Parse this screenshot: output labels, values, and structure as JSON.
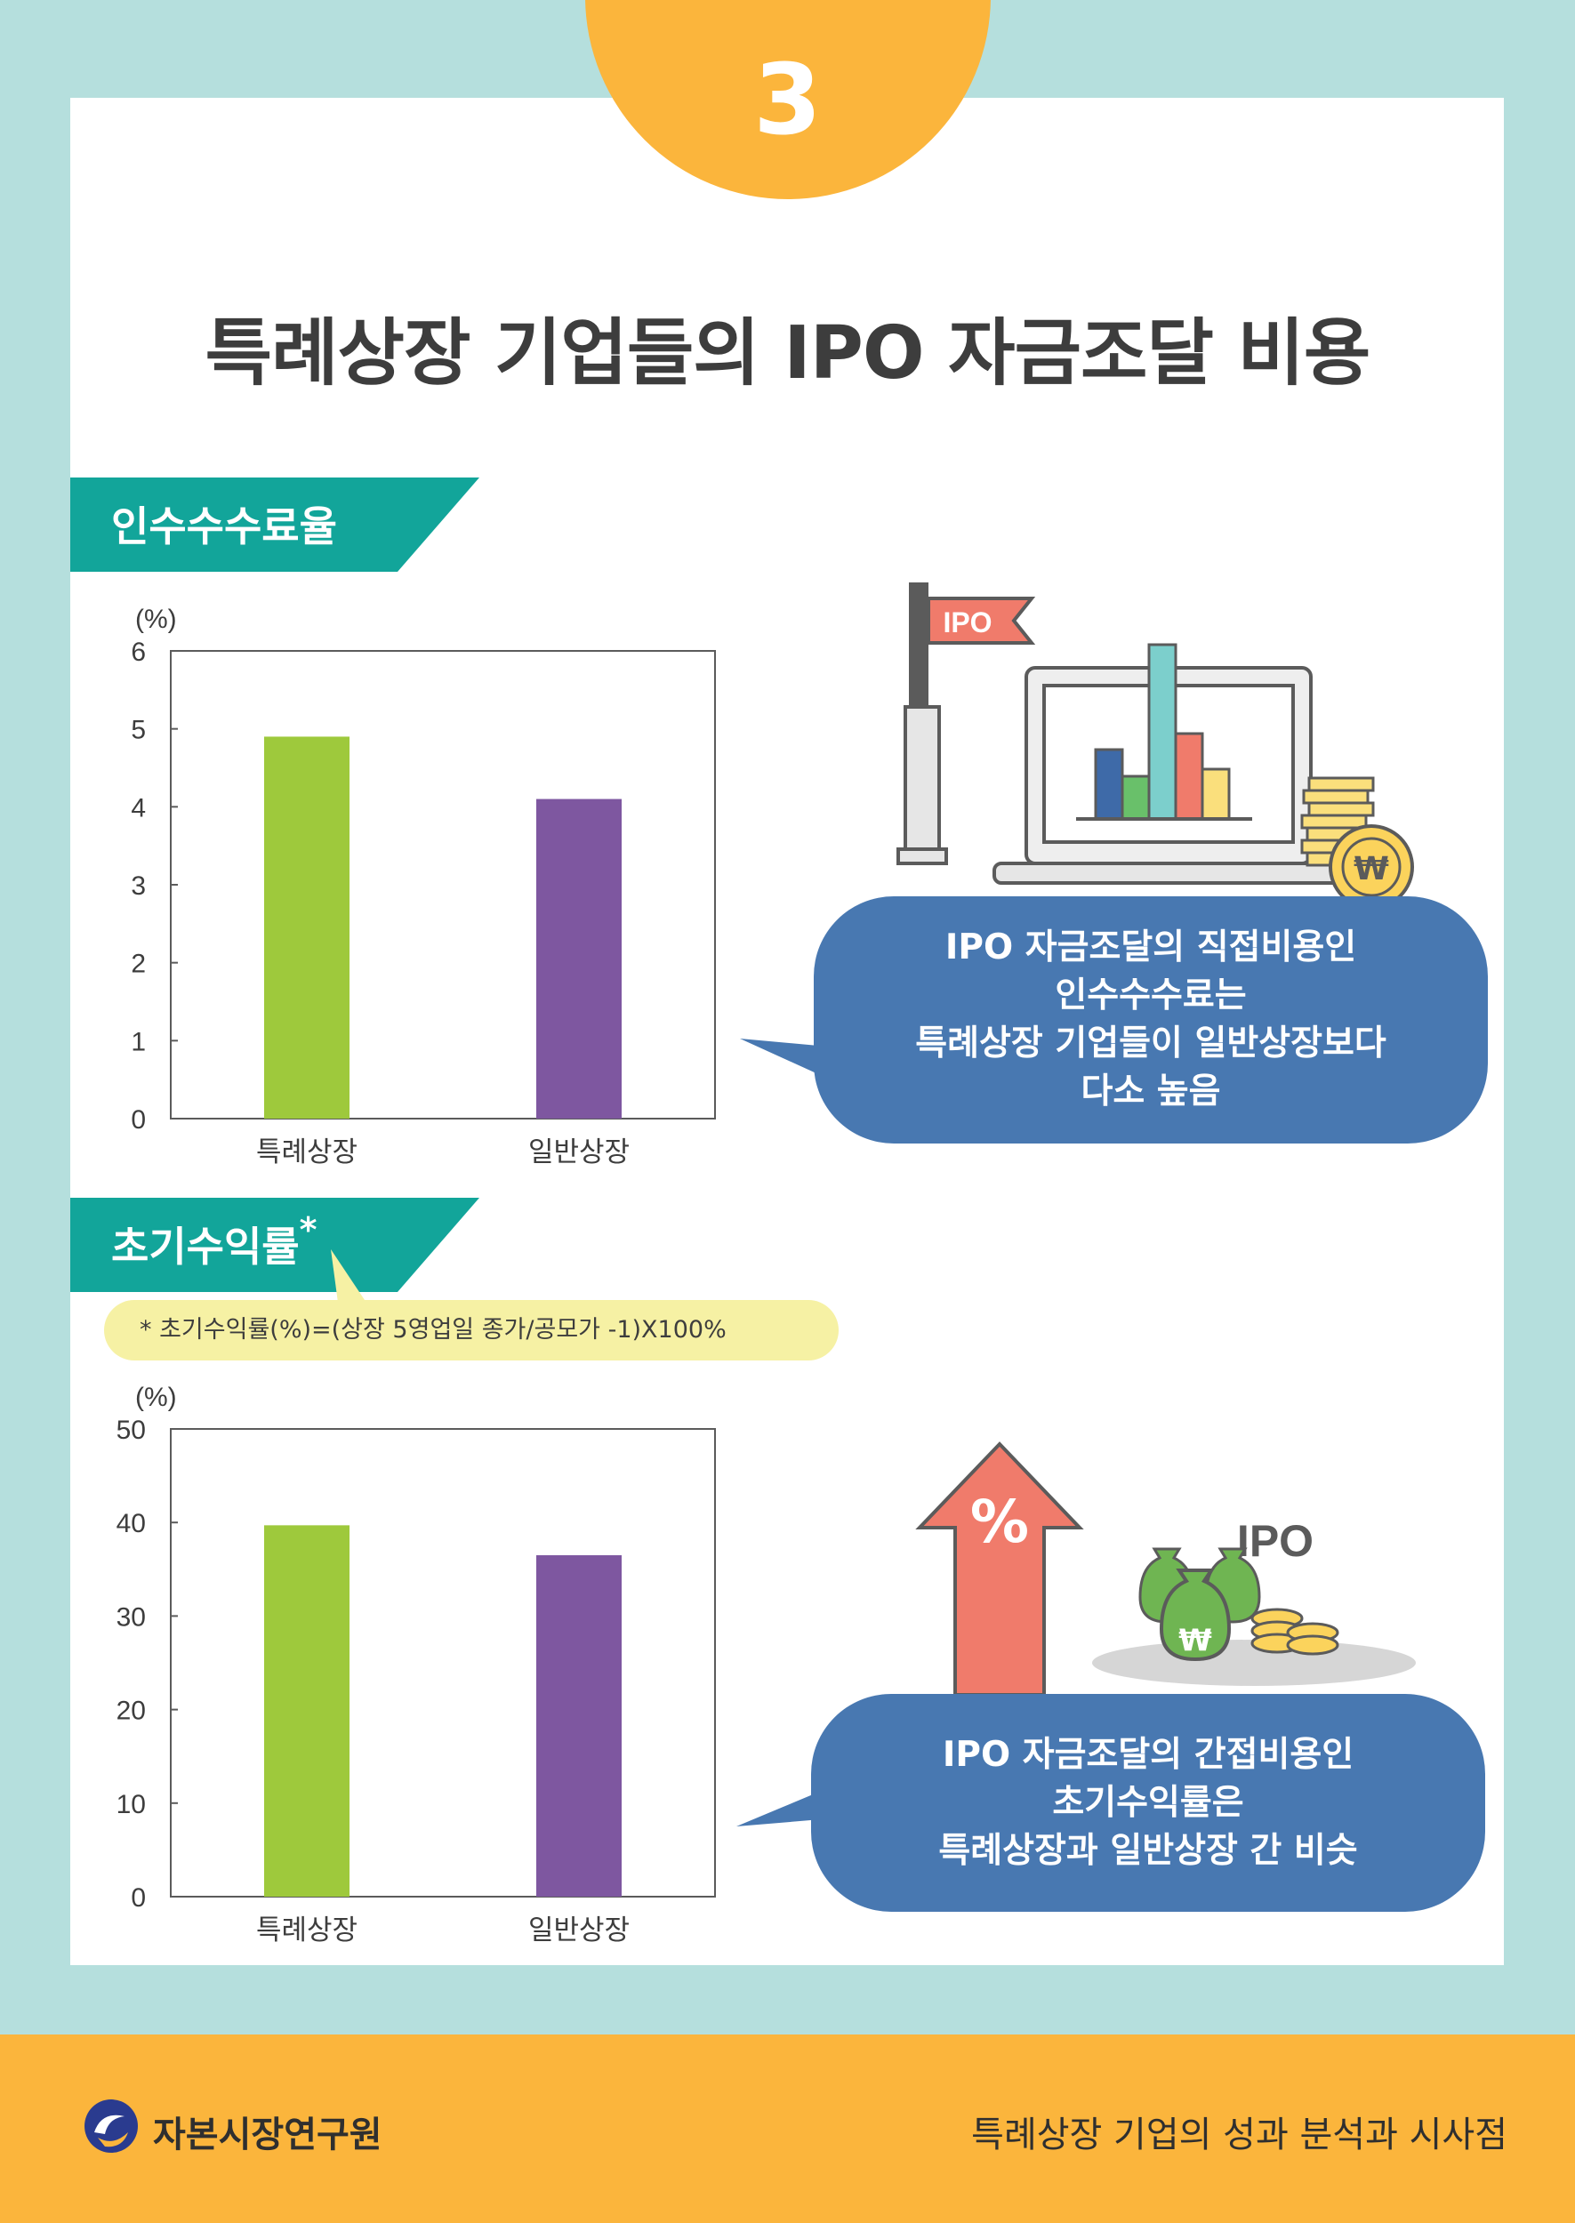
{
  "page": {
    "number": "3",
    "title": "특례상장 기업들의 IPO 자금조달 비용"
  },
  "sections": [
    {
      "label": "인수수수료율",
      "bubble_lines": [
        "IPO 자금조달의 직접비용인",
        "인수수수료는",
        "특례상장 기업들이 일반상장보다",
        "다소 높음"
      ]
    },
    {
      "label": "초기수익률",
      "marker": "*",
      "footnote": "* 초기수익률(%)=(상장 5영업일 종가/공모가 -1)X100%",
      "bubble_lines": [
        "IPO 자금조달의 간접비용인",
        "초기수익률은",
        "특례상장과 일반상장 간 비슷"
      ]
    }
  ],
  "chart_data": [
    {
      "type": "bar",
      "unit": "(%)",
      "categories": [
        "특례상장",
        "일반상장"
      ],
      "values": [
        4.9,
        4.1
      ],
      "colors": [
        "#9ec93c",
        "#7e57a0"
      ],
      "yticks": [
        0,
        1,
        2,
        3,
        4,
        5,
        6
      ],
      "ylim": [
        0,
        6
      ]
    },
    {
      "type": "bar",
      "unit": "(%)",
      "categories": [
        "특례상장",
        "일반상장"
      ],
      "values": [
        39.7,
        36.5
      ],
      "colors": [
        "#9ec93c",
        "#7e57a0"
      ],
      "yticks": [
        0,
        10,
        20,
        30,
        40,
        50
      ],
      "ylim": [
        0,
        50
      ]
    }
  ],
  "illustrations": {
    "flag_label": "IPO",
    "coin_symbol": "₩",
    "arrow_symbol": "%",
    "bags_label": "IPO"
  },
  "footer": {
    "org": "자본시장연구원",
    "report": "특례상장 기업의 성과 분석과 시사점"
  }
}
